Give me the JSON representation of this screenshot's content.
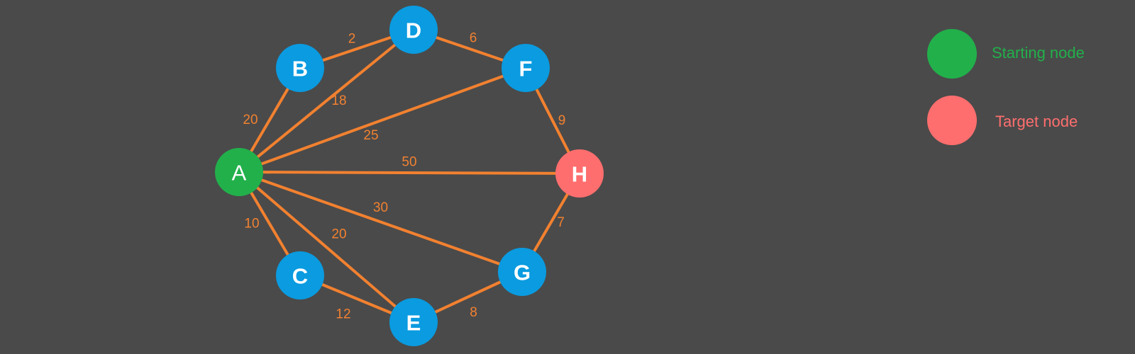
{
  "colors": {
    "background": "#4a4a4a",
    "edge": "#f28130",
    "node": "#0a9be0",
    "start": "#22b04b",
    "target": "#ff6e6e"
  },
  "graph": {
    "nodes": [
      {
        "id": "A",
        "label": "A",
        "role": "start"
      },
      {
        "id": "B",
        "label": "B",
        "role": "normal"
      },
      {
        "id": "C",
        "label": "C",
        "role": "normal"
      },
      {
        "id": "D",
        "label": "D",
        "role": "normal"
      },
      {
        "id": "E",
        "label": "E",
        "role": "normal"
      },
      {
        "id": "F",
        "label": "F",
        "role": "normal"
      },
      {
        "id": "G",
        "label": "G",
        "role": "normal"
      },
      {
        "id": "H",
        "label": "H",
        "role": "target"
      }
    ],
    "edges": [
      {
        "from": "A",
        "to": "B",
        "weight": "20"
      },
      {
        "from": "A",
        "to": "D",
        "weight": "18"
      },
      {
        "from": "A",
        "to": "F",
        "weight": "25"
      },
      {
        "from": "A",
        "to": "H",
        "weight": "50"
      },
      {
        "from": "A",
        "to": "G",
        "weight": "30"
      },
      {
        "from": "A",
        "to": "E",
        "weight": "20"
      },
      {
        "from": "A",
        "to": "C",
        "weight": "10"
      },
      {
        "from": "B",
        "to": "D",
        "weight": "2"
      },
      {
        "from": "D",
        "to": "F",
        "weight": "6"
      },
      {
        "from": "F",
        "to": "H",
        "weight": "9"
      },
      {
        "from": "G",
        "to": "H",
        "weight": "7"
      },
      {
        "from": "E",
        "to": "G",
        "weight": "8"
      },
      {
        "from": "C",
        "to": "E",
        "weight": "12"
      }
    ]
  },
  "legend": {
    "start_label": "Starting node",
    "target_label": "Target node"
  }
}
